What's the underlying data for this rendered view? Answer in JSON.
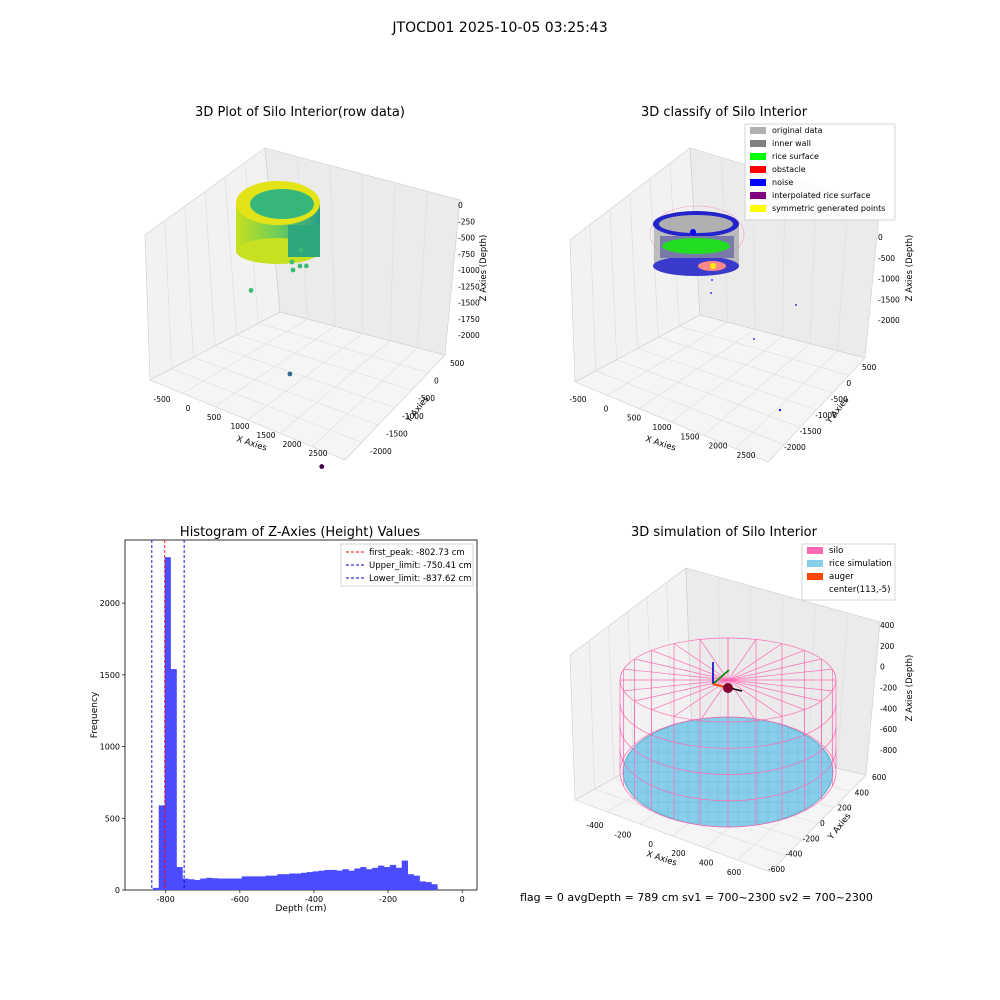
{
  "figure": {
    "suptitle": "JTOCD01 2025-10-05 03:25:43",
    "footer": "flag = 0     avgDepth = 789 cm  sv1 = 700~2300  sv2 = 700~2300"
  },
  "colors": {
    "hist_bar": "#4b4bff",
    "peak_line": "#ff0000",
    "limit_line": "#0000cc",
    "silo_wire": "#ff69b4",
    "rice_surface": "#87ceeb",
    "auger": "#ff4500",
    "original_data": "#b0b0b0",
    "inner_wall": "#808080",
    "rice": "#00ff00",
    "obstacle": "#ff0000",
    "noise": "#0000ff",
    "interpolated": "#800080",
    "symmetric": "#ffff00"
  },
  "chart_data": [
    {
      "type": "scatter",
      "panel": "3d-raw",
      "title": "3D Plot of Silo Interior(row data)",
      "xlabel": "X Axies",
      "ylabel": "Y Axies",
      "zlabel": "Z Axies (Depth)",
      "x_ticks": [
        "-500",
        "0",
        "500",
        "1000",
        "1500",
        "2000",
        "2500"
      ],
      "y_ticks": [
        "500",
        "0",
        "-500",
        "-1000",
        "-1500",
        "-2000"
      ],
      "z_ticks": [
        "0",
        "-250",
        "-500",
        "-750",
        "-1000",
        "-1250",
        "-1500",
        "-1750",
        "-2000"
      ],
      "xlim": [
        -600,
        2800
      ],
      "ylim": [
        -2100,
        700
      ],
      "zlim": [
        -2100,
        100
      ],
      "colormap": "viridis",
      "outlier_points": [
        {
          "x": 150,
          "y": -200,
          "z": -1050
        },
        {
          "x": 900,
          "y": 100,
          "z": -600
        },
        {
          "x": 1400,
          "y": -1000,
          "z": -1500
        },
        {
          "x": 2600,
          "y": -1900,
          "z": -2050
        }
      ]
    },
    {
      "type": "scatter",
      "panel": "3d-classify",
      "title": "3D classify of Silo Interior",
      "xlabel": "X Axies",
      "ylabel": "Y Axies",
      "zlabel": "Z Axies (Depth)",
      "x_ticks": [
        "-500",
        "0",
        "500",
        "1000",
        "1500",
        "2000",
        "2500"
      ],
      "y_ticks": [
        "500",
        "0",
        "-500",
        "-1000",
        "-1500",
        "-2000"
      ],
      "z_ticks": [
        "0",
        "-500",
        "-1000",
        "-1500",
        "-2000"
      ],
      "legend": [
        {
          "label": "original data",
          "color": "#b0b0b0"
        },
        {
          "label": "inner wall",
          "color": "#808080"
        },
        {
          "label": "rice surface",
          "color": "#00ff00"
        },
        {
          "label": "obstacle",
          "color": "#ff0000"
        },
        {
          "label": "noise",
          "color": "#0000ff"
        },
        {
          "label": "interpolated rice surface",
          "color": "#800080"
        },
        {
          "label": "symmetric generated points",
          "color": "#ffff00"
        }
      ]
    },
    {
      "type": "bar",
      "panel": "histogram",
      "title": "Histogram of Z-Axies (Height) Values",
      "xlabel": "Depth (cm)",
      "ylabel": "Frequency",
      "xlim": [
        -910,
        40
      ],
      "ylim": [
        0,
        2440
      ],
      "x_ticks": [
        -800,
        -600,
        -400,
        -200,
        0
      ],
      "y_ticks": [
        0,
        500,
        1000,
        1500,
        2000
      ],
      "bin_start": -835,
      "bin_width": 16,
      "values": [
        15,
        590,
        2320,
        1540,
        160,
        80,
        75,
        70,
        80,
        85,
        82,
        80,
        80,
        80,
        80,
        95,
        95,
        95,
        95,
        100,
        100,
        110,
        110,
        115,
        115,
        120,
        125,
        130,
        135,
        140,
        140,
        135,
        145,
        135,
        150,
        160,
        145,
        155,
        170,
        160,
        175,
        155,
        205,
        110,
        100,
        60,
        55,
        40
      ],
      "vlines": [
        {
          "name": "first_peak: -802.73 cm",
          "x": -802.73,
          "color": "#ff0000"
        },
        {
          "name": "Upper_limit: -750.41 cm",
          "x": -750.41,
          "color": "#0000cc"
        },
        {
          "name": "Lower_limit: -837.62 cm",
          "x": -837.62,
          "color": "#0000cc"
        }
      ]
    },
    {
      "type": "scatter",
      "panel": "3d-simulation",
      "title": "3D simulation of Silo Interior",
      "xlabel": "X Axies",
      "ylabel": "Y Axies",
      "zlabel": "Z Axies (Depth)",
      "x_ticks": [
        "-400",
        "-200",
        "0",
        "200",
        "400",
        "600"
      ],
      "y_ticks": [
        "600",
        "400",
        "200",
        "0",
        "-200",
        "-400",
        "-600"
      ],
      "z_ticks": [
        "400",
        "200",
        "0",
        "-200",
        "-400",
        "-600",
        "-800"
      ],
      "legend": [
        {
          "label": "silo",
          "color": "#ff69b4"
        },
        {
          "label": "rice simulation",
          "color": "#87ceeb"
        },
        {
          "label": "auger",
          "color": "#ff4500"
        },
        {
          "label": "center(113,-5)",
          "color": ""
        }
      ]
    }
  ]
}
